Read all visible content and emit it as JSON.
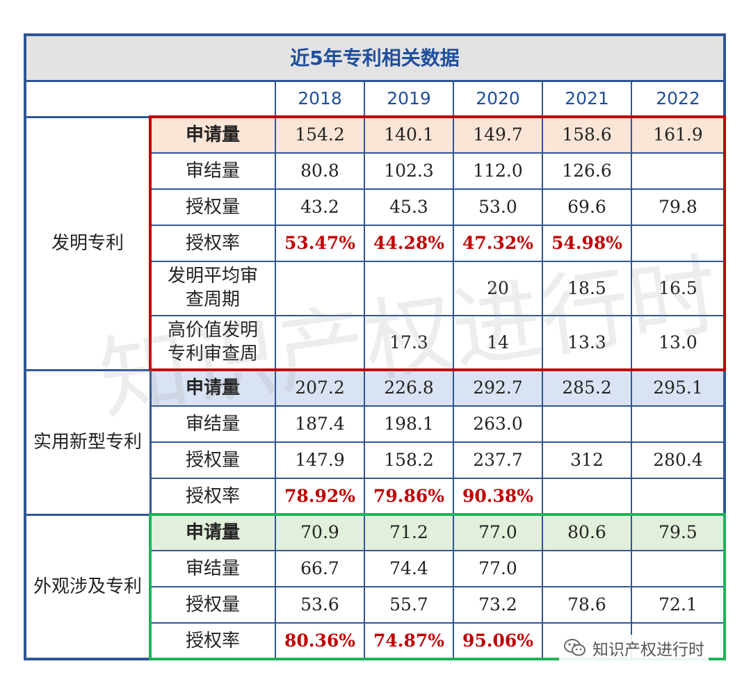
{
  "title": "近5年专利相关数据",
  "years": [
    "2018",
    "2019",
    "2020",
    "2021",
    "2022"
  ],
  "sections": [
    {
      "name": "发明专利",
      "rows": [
        {
          "label": "申请量",
          "values": [
            "154.2",
            "140.1",
            "149.7",
            "158.6",
            "161.9"
          ],
          "bold": true,
          "highlight": true
        },
        {
          "label": "审结量",
          "values": [
            "80.8",
            "102.3",
            "112.0",
            "126.6",
            ""
          ]
        },
        {
          "label": "授权量",
          "values": [
            "43.2",
            "45.3",
            "53.0",
            "69.6",
            "79.8"
          ]
        },
        {
          "label": "授权率",
          "values": [
            "53.47%",
            "44.28%",
            "47.32%",
            "54.98%",
            ""
          ],
          "pct": true
        },
        {
          "label": "发明平均审查周期",
          "values": [
            "",
            "",
            "20",
            "18.5",
            "16.5"
          ]
        },
        {
          "label": "高价值发明专利审查周",
          "values": [
            "",
            "17.3",
            "14",
            "13.3",
            "13.0"
          ]
        }
      ]
    },
    {
      "name": "实用新型专利",
      "rows": [
        {
          "label": "申请量",
          "values": [
            "207.2",
            "226.8",
            "292.7",
            "285.2",
            "295.1"
          ],
          "bold": true,
          "highlight": true
        },
        {
          "label": "审结量",
          "values": [
            "187.4",
            "198.1",
            "263.0",
            "",
            ""
          ]
        },
        {
          "label": "授权量",
          "values": [
            "147.9",
            "158.2",
            "237.7",
            "312",
            "280.4"
          ]
        },
        {
          "label": "授权率",
          "values": [
            "78.92%",
            "79.86%",
            "90.38%",
            "",
            ""
          ],
          "pct": true
        }
      ]
    },
    {
      "name": "外观涉及专利",
      "rows": [
        {
          "label": "申请量",
          "values": [
            "70.9",
            "71.2",
            "77.0",
            "80.6",
            "79.5"
          ],
          "bold": true,
          "highlight": true
        },
        {
          "label": "审结量",
          "values": [
            "66.7",
            "74.4",
            "77.0",
            "",
            ""
          ]
        },
        {
          "label": "授权量",
          "values": [
            "53.6",
            "55.7",
            "73.2",
            "78.6",
            "72.1"
          ]
        },
        {
          "label": "授权率",
          "values": [
            "80.36%",
            "74.87%",
            "95.06%",
            "",
            ""
          ],
          "pct": true
        }
      ]
    }
  ],
  "watermark": "知识产权进行时",
  "wechat_badge": {
    "icon": "wechat-icon",
    "text": "知识产权进行时"
  },
  "colors": {
    "border_blue": "#2f5597",
    "frame_red": "#c00000",
    "frame_green": "#1fb25a",
    "title_text": "#1f4e9c",
    "pct_red": "#c00000",
    "hl_invention": "#fbe5d6",
    "hl_utility": "#dae3f3",
    "hl_design": "#e2efda"
  }
}
